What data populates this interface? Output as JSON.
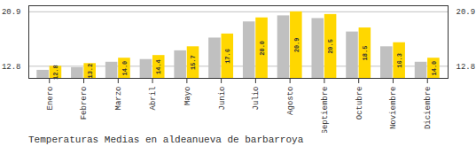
{
  "chart_data": {
    "type": "bar",
    "title": "Temperaturas Medias en aldeanueva de barbarroya",
    "categories": [
      "Enero",
      "Febrero",
      "Marzo",
      "Abril",
      "Mayo",
      "Junio",
      "Julio",
      "Agosto",
      "Septiembre",
      "Octubre",
      "Noviembre",
      "Diciembre"
    ],
    "series": [
      {
        "color": "#C0C0C0",
        "values": [
          12.2,
          12.6,
          13.4,
          13.8,
          15.1,
          17.0,
          19.4,
          20.3,
          19.9,
          17.9,
          15.7,
          13.4
        ]
      },
      {
        "color": "#FFD700",
        "values": [
          12.8,
          13.2,
          14.0,
          14.4,
          15.7,
          17.6,
          20.0,
          20.9,
          20.5,
          18.5,
          16.3,
          14.0
        ],
        "data_labels": true,
        "value_labels": [
          "12.8",
          "13.2",
          "14.0",
          "14.4",
          "15.7",
          "17.6",
          "20.0",
          "20.9",
          "20.5",
          "18.5",
          "16.3",
          "14.0"
        ]
      }
    ],
    "ylim": [
      11.0,
      21.8
    ],
    "yticks": [
      12.8,
      20.9
    ],
    "y2lim": [
      11.0,
      21.8
    ],
    "y2ticks": [
      12.8,
      20.9
    ],
    "grid": true
  }
}
